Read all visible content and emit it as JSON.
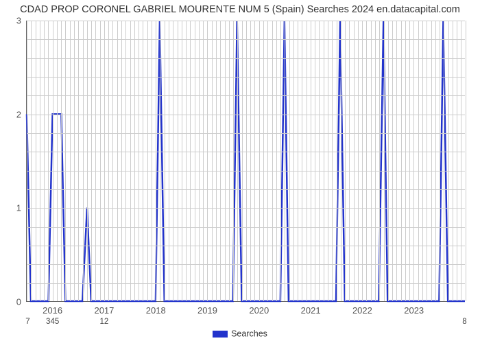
{
  "chart": {
    "type": "line",
    "title": "CDAD PROP CORONEL GABRIEL MOURENTE NUM 5 (Spain) Searches 2024 en.datacapital.com",
    "title_fontsize": 14.5,
    "title_color": "#333333",
    "background_color": "#ffffff",
    "plot_border_color": "#666666",
    "grid_color": "#cccccc",
    "line_color": "#2233cc",
    "line_width": 2.5,
    "x_axis": {
      "min": 2015.5,
      "max": 2024.0,
      "major_ticks": [
        2016,
        2017,
        2018,
        2019,
        2020,
        2021,
        2022,
        2023
      ],
      "minor_step": 0.0833,
      "label_fontsize": 13,
      "label_color": "#555555"
    },
    "y_axis": {
      "min": 0,
      "max": 3,
      "major_ticks": [
        0,
        1,
        2,
        3
      ],
      "minor_step": 0.2,
      "label_fontsize": 13,
      "label_color": "#555555"
    },
    "totals": [
      {
        "x": 2015.52,
        "label": "7"
      },
      {
        "x": 2016.0,
        "label": "345"
      },
      {
        "x": 2017.0,
        "label": "12"
      },
      {
        "x": 2023.98,
        "label": "8"
      }
    ],
    "series": {
      "name": "Searches",
      "points": [
        {
          "x": 2015.5,
          "y": 2
        },
        {
          "x": 2015.58,
          "y": 0
        },
        {
          "x": 2015.92,
          "y": 0
        },
        {
          "x": 2016.0,
          "y": 2
        },
        {
          "x": 2016.17,
          "y": 2
        },
        {
          "x": 2016.25,
          "y": 0
        },
        {
          "x": 2016.58,
          "y": 0
        },
        {
          "x": 2016.67,
          "y": 1
        },
        {
          "x": 2016.75,
          "y": 0
        },
        {
          "x": 2018.0,
          "y": 0
        },
        {
          "x": 2018.08,
          "y": 3
        },
        {
          "x": 2018.17,
          "y": 0
        },
        {
          "x": 2019.5,
          "y": 0
        },
        {
          "x": 2019.58,
          "y": 3
        },
        {
          "x": 2019.67,
          "y": 0
        },
        {
          "x": 2020.42,
          "y": 0
        },
        {
          "x": 2020.5,
          "y": 3
        },
        {
          "x": 2020.58,
          "y": 0
        },
        {
          "x": 2021.5,
          "y": 0
        },
        {
          "x": 2021.58,
          "y": 3
        },
        {
          "x": 2021.67,
          "y": 0
        },
        {
          "x": 2022.33,
          "y": 0
        },
        {
          "x": 2022.42,
          "y": 3
        },
        {
          "x": 2022.5,
          "y": 0
        },
        {
          "x": 2023.5,
          "y": 0
        },
        {
          "x": 2023.58,
          "y": 3
        },
        {
          "x": 2023.67,
          "y": 0
        },
        {
          "x": 2024.0,
          "y": 0
        }
      ]
    },
    "legend": {
      "label": "Searches",
      "swatch_color": "#2233cc",
      "fontsize": 12.5
    }
  }
}
